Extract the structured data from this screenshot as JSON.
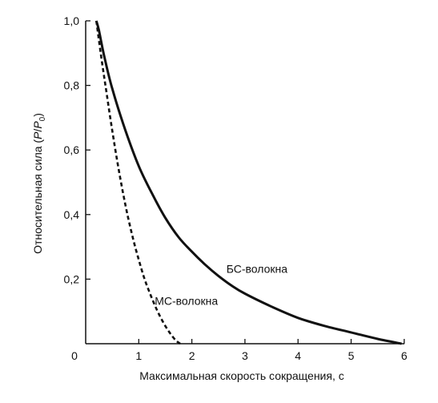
{
  "chart_data": {
    "type": "line",
    "title": "",
    "xlabel": "Максимальная скорость сокращения, с",
    "ylabel_parts": [
      "Относительная сила (",
      "P",
      "/",
      "P",
      "0",
      ")"
    ],
    "xlim": [
      0,
      6
    ],
    "ylim": [
      0,
      1.0
    ],
    "x_ticks": [
      {
        "value": 0,
        "label": "0"
      },
      {
        "value": 1,
        "label": "1"
      },
      {
        "value": 2,
        "label": "2"
      },
      {
        "value": 3,
        "label": "3"
      },
      {
        "value": 4,
        "label": "4"
      },
      {
        "value": 5,
        "label": "5"
      },
      {
        "value": 6,
        "label": "6"
      }
    ],
    "y_ticks": [
      {
        "value": 0.2,
        "label": "0,2"
      },
      {
        "value": 0.4,
        "label": "0,4"
      },
      {
        "value": 0.6,
        "label": "0,6"
      },
      {
        "value": 0.8,
        "label": "0,8"
      },
      {
        "value": 1.0,
        "label": "1,0"
      }
    ],
    "grid": false,
    "series": [
      {
        "name": "БС-волокна",
        "style": "solid",
        "color": "#111111",
        "points": [
          [
            0.2,
            1.0
          ],
          [
            0.25,
            0.97
          ],
          [
            0.35,
            0.89
          ],
          [
            0.5,
            0.79
          ],
          [
            0.75,
            0.66
          ],
          [
            1.0,
            0.55
          ],
          [
            1.25,
            0.465
          ],
          [
            1.5,
            0.39
          ],
          [
            1.75,
            0.33
          ],
          [
            2.0,
            0.285
          ],
          [
            2.25,
            0.245
          ],
          [
            2.5,
            0.21
          ],
          [
            2.75,
            0.18
          ],
          [
            3.0,
            0.155
          ],
          [
            3.5,
            0.115
          ],
          [
            4.0,
            0.08
          ],
          [
            4.5,
            0.055
          ],
          [
            5.0,
            0.035
          ],
          [
            5.5,
            0.015
          ],
          [
            5.95,
            0.0
          ]
        ],
        "label_anchor": [
          2.65,
          0.2
        ]
      },
      {
        "name": "МС-волокна",
        "style": "dashed",
        "color": "#111111",
        "points": [
          [
            0.2,
            1.0
          ],
          [
            0.3,
            0.88
          ],
          [
            0.4,
            0.77
          ],
          [
            0.5,
            0.66
          ],
          [
            0.6,
            0.56
          ],
          [
            0.7,
            0.47
          ],
          [
            0.8,
            0.39
          ],
          [
            0.9,
            0.32
          ],
          [
            1.0,
            0.26
          ],
          [
            1.1,
            0.205
          ],
          [
            1.2,
            0.16
          ],
          [
            1.3,
            0.12
          ],
          [
            1.4,
            0.085
          ],
          [
            1.5,
            0.055
          ],
          [
            1.6,
            0.03
          ],
          [
            1.7,
            0.01
          ],
          [
            1.78,
            0.0
          ]
        ],
        "label_anchor": [
          1.3,
          0.1
        ]
      }
    ]
  }
}
